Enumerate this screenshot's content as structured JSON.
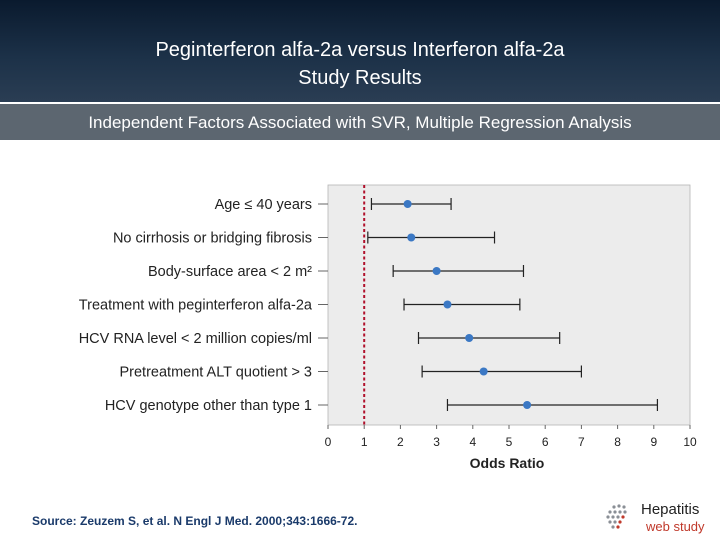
{
  "header": {
    "title_line1": "Peginterferon alfa-2a versus Interferon alfa-2a",
    "title_line2": "Study Results"
  },
  "subtitle": "Independent Factors Associated with SVR, Multiple Regression Analysis",
  "chart_data": {
    "type": "forest",
    "xlabel": "Odds Ratio",
    "xlim": [
      0,
      10
    ],
    "xticks": [
      0,
      1,
      2,
      3,
      4,
      5,
      6,
      7,
      8,
      9,
      10
    ],
    "reference_line": 1,
    "grid": false,
    "rows": [
      {
        "label": "Age ≤ 40 years",
        "estimate": 2.2,
        "lower": 1.2,
        "upper": 3.4
      },
      {
        "label": "No cirrhosis or bridging fibrosis",
        "estimate": 2.3,
        "lower": 1.1,
        "upper": 4.6
      },
      {
        "label": "Body-surface area < 2 m²",
        "estimate": 3.0,
        "lower": 1.8,
        "upper": 5.4
      },
      {
        "label": "Treatment with peginterferon alfa-2a",
        "estimate": 3.3,
        "lower": 2.1,
        "upper": 5.3
      },
      {
        "label": "HCV RNA level < 2 million copies/ml",
        "estimate": 3.9,
        "lower": 2.5,
        "upper": 6.4
      },
      {
        "label": "Pretreatment ALT quotient > 3",
        "estimate": 4.3,
        "lower": 2.6,
        "upper": 7.0
      },
      {
        "label": "HCV genotype other than type 1",
        "estimate": 5.5,
        "lower": 3.3,
        "upper": 9.1
      }
    ],
    "colors": {
      "panel": "#ececec",
      "marker": "#3b78c4",
      "reference_line": "#b0102b",
      "whisker": "#222222"
    }
  },
  "source": "Source: Zeuzem S, et al.  N Engl J Med.  2000;343:1666-72.",
  "logo": {
    "word": "Hepatitis",
    "sub": "web study",
    "icon": "hepatitis-logo-icon"
  }
}
